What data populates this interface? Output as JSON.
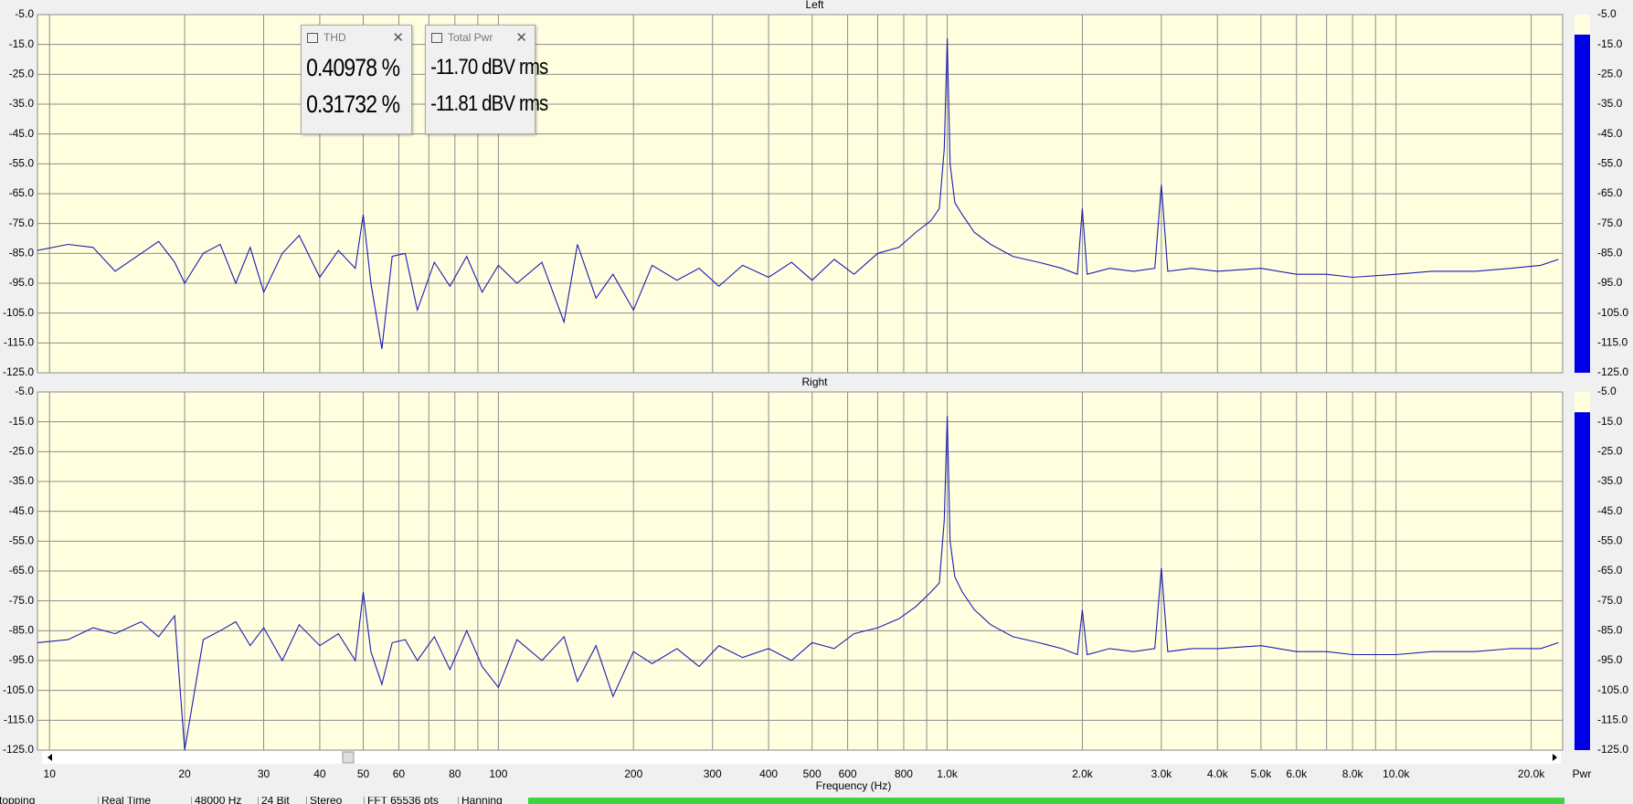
{
  "chart_data": [
    {
      "type": "line",
      "title": "Left",
      "log_x": true,
      "grid": true,
      "color": "#1c1cb4",
      "background": "#ffffe0",
      "xlim": [
        9.4,
        23500
      ],
      "ylim": [
        -125,
        -5
      ],
      "xticks": [
        10,
        20,
        30,
        40,
        50,
        60,
        70,
        80,
        90,
        100,
        200,
        300,
        400,
        500,
        600,
        700,
        800,
        900,
        1000,
        2000,
        3000,
        4000,
        5000,
        6000,
        7000,
        8000,
        9000,
        10000,
        20000
      ],
      "yticks": [
        {
          "value": -5,
          "label": "-5.0"
        },
        {
          "value": -15,
          "label": "-15.0"
        },
        {
          "value": -25,
          "label": "-25.0"
        },
        {
          "value": -35,
          "label": "-35.0"
        },
        {
          "value": -45,
          "label": "-45.0"
        },
        {
          "value": -55,
          "label": "-55.0"
        },
        {
          "value": -65,
          "label": "-65.0"
        },
        {
          "value": -75,
          "label": "-75.0"
        },
        {
          "value": -85,
          "label": "-85.0"
        },
        {
          "value": -95,
          "label": "-95.0"
        },
        {
          "value": -105,
          "label": "-105.0"
        },
        {
          "value": -115,
          "label": "-115.0"
        },
        {
          "value": -125,
          "label": "-125.0"
        }
      ],
      "x": [
        9.4,
        11,
        12.5,
        14,
        16,
        17.5,
        19,
        20,
        22,
        24,
        26,
        28,
        30,
        33,
        36,
        40,
        44,
        48,
        50,
        52,
        55,
        58,
        62,
        66,
        72,
        78,
        85,
        92,
        100,
        110,
        125,
        140,
        150,
        165,
        180,
        200,
        220,
        250,
        280,
        310,
        350,
        400,
        450,
        500,
        560,
        620,
        700,
        780,
        850,
        920,
        960,
        985,
        1000,
        1015,
        1040,
        1080,
        1150,
        1250,
        1400,
        1600,
        1800,
        1950,
        2000,
        2050,
        2300,
        2600,
        2900,
        3000,
        3100,
        3500,
        4000,
        5000,
        6000,
        7000,
        8000,
        10000,
        12000,
        15000,
        18000,
        21000,
        23000
      ],
      "values": [
        -84,
        -82,
        -83,
        -91,
        -85,
        -81,
        -88,
        -95,
        -85,
        -82,
        -95,
        -83,
        -98,
        -85,
        -79,
        -93,
        -84,
        -90,
        -72,
        -95,
        -117,
        -86,
        -85,
        -104,
        -88,
        -96,
        -86,
        -98,
        -89,
        -95,
        -88,
        -108,
        -82,
        -100,
        -92,
        -104,
        -89,
        -94,
        -90,
        -96,
        -89,
        -93,
        -88,
        -94,
        -87,
        -92,
        -85,
        -83,
        -78,
        -74,
        -70,
        -50,
        -13,
        -55,
        -68,
        -72,
        -78,
        -82,
        -86,
        -88,
        -90,
        -92,
        -70,
        -92,
        -90,
        -91,
        -90,
        -62,
        -91,
        -90,
        -91,
        -90,
        -92,
        -92,
        -93,
        -92,
        -91,
        -91,
        -90,
        -89,
        -87
      ],
      "meter": {
        "value": -11.7,
        "color": "#0000e6"
      }
    },
    {
      "type": "line",
      "title": "Right",
      "log_x": true,
      "grid": true,
      "color": "#1c1cb4",
      "background": "#ffffe0",
      "xlim": [
        9.4,
        23500
      ],
      "ylim": [
        -125,
        -5
      ],
      "xlabel": "Frequency (Hz)",
      "xticks": [
        10,
        20,
        30,
        40,
        50,
        60,
        80,
        100,
        200,
        300,
        400,
        500,
        600,
        800,
        {
          "value": 1000,
          "label": "1.0k"
        },
        {
          "value": 2000,
          "label": "2.0k"
        },
        {
          "value": 3000,
          "label": "3.0k"
        },
        {
          "value": 4000,
          "label": "4.0k"
        },
        {
          "value": 5000,
          "label": "5.0k"
        },
        {
          "value": 6000,
          "label": "6.0k"
        },
        {
          "value": 8000,
          "label": "8.0k"
        },
        {
          "value": 10000,
          "label": "10.0k"
        },
        {
          "value": 20000,
          "label": "20.0k"
        }
      ],
      "minor_xticks": [
        70,
        90,
        700,
        900,
        7000,
        9000
      ],
      "yticks": [
        {
          "value": -5,
          "label": "-5.0"
        },
        {
          "value": -15,
          "label": "-15.0"
        },
        {
          "value": -25,
          "label": "-25.0"
        },
        {
          "value": -35,
          "label": "-35.0"
        },
        {
          "value": -45,
          "label": "-45.0"
        },
        {
          "value": -55,
          "label": "-55.0"
        },
        {
          "value": -65,
          "label": "-65.0"
        },
        {
          "value": -75,
          "label": "-75.0"
        },
        {
          "value": -85,
          "label": "-85.0"
        },
        {
          "value": -95,
          "label": "-95.0"
        },
        {
          "value": -105,
          "label": "-105.0"
        },
        {
          "value": -115,
          "label": "-115.0"
        },
        {
          "value": -125,
          "label": "-125.0"
        }
      ],
      "x": [
        9.4,
        11,
        12.5,
        14,
        16,
        17.5,
        19,
        20,
        22,
        24,
        26,
        28,
        30,
        33,
        36,
        40,
        44,
        48,
        50,
        52,
        55,
        58,
        62,
        66,
        72,
        78,
        85,
        92,
        100,
        110,
        125,
        140,
        150,
        165,
        180,
        200,
        220,
        250,
        280,
        310,
        350,
        400,
        450,
        500,
        560,
        620,
        700,
        780,
        850,
        920,
        960,
        985,
        1000,
        1015,
        1040,
        1080,
        1150,
        1250,
        1400,
        1600,
        1800,
        1950,
        2000,
        2050,
        2300,
        2600,
        2900,
        3000,
        3100,
        3500,
        4000,
        5000,
        6000,
        7000,
        8000,
        10000,
        12000,
        15000,
        18000,
        21000,
        23000
      ],
      "values": [
        -89,
        -88,
        -84,
        -86,
        -82,
        -87,
        -80,
        -125,
        -88,
        -85,
        -82,
        -90,
        -84,
        -95,
        -83,
        -90,
        -86,
        -95,
        -72,
        -92,
        -103,
        -89,
        -88,
        -95,
        -87,
        -98,
        -85,
        -97,
        -104,
        -88,
        -95,
        -87,
        -102,
        -90,
        -107,
        -92,
        -96,
        -91,
        -97,
        -90,
        -94,
        -91,
        -95,
        -89,
        -91,
        -86,
        -84,
        -81,
        -77,
        -72,
        -69,
        -48,
        -13,
        -55,
        -67,
        -72,
        -78,
        -83,
        -87,
        -89,
        -91,
        -93,
        -78,
        -93,
        -91,
        -92,
        -91,
        -64,
        -92,
        -91,
        -91,
        -90,
        -92,
        -92,
        -93,
        -93,
        -92,
        -92,
        -91,
        -91,
        -89
      ],
      "meter": {
        "value": -11.8,
        "color": "#0000e6",
        "label": "Pwr"
      }
    }
  ],
  "widgets": [
    {
      "title": "THD",
      "lines": [
        "0.40978 %",
        "0.31732 %"
      ]
    },
    {
      "title": "Total Pwr",
      "lines": [
        "-11.70 dBV rms",
        "-11.81 dBV rms"
      ]
    }
  ],
  "status_bar": [
    "Stopping",
    "Real Time",
    "48000 Hz",
    "24 Bit",
    "Stereo",
    "FFT 65536 pts",
    "Hanning"
  ]
}
